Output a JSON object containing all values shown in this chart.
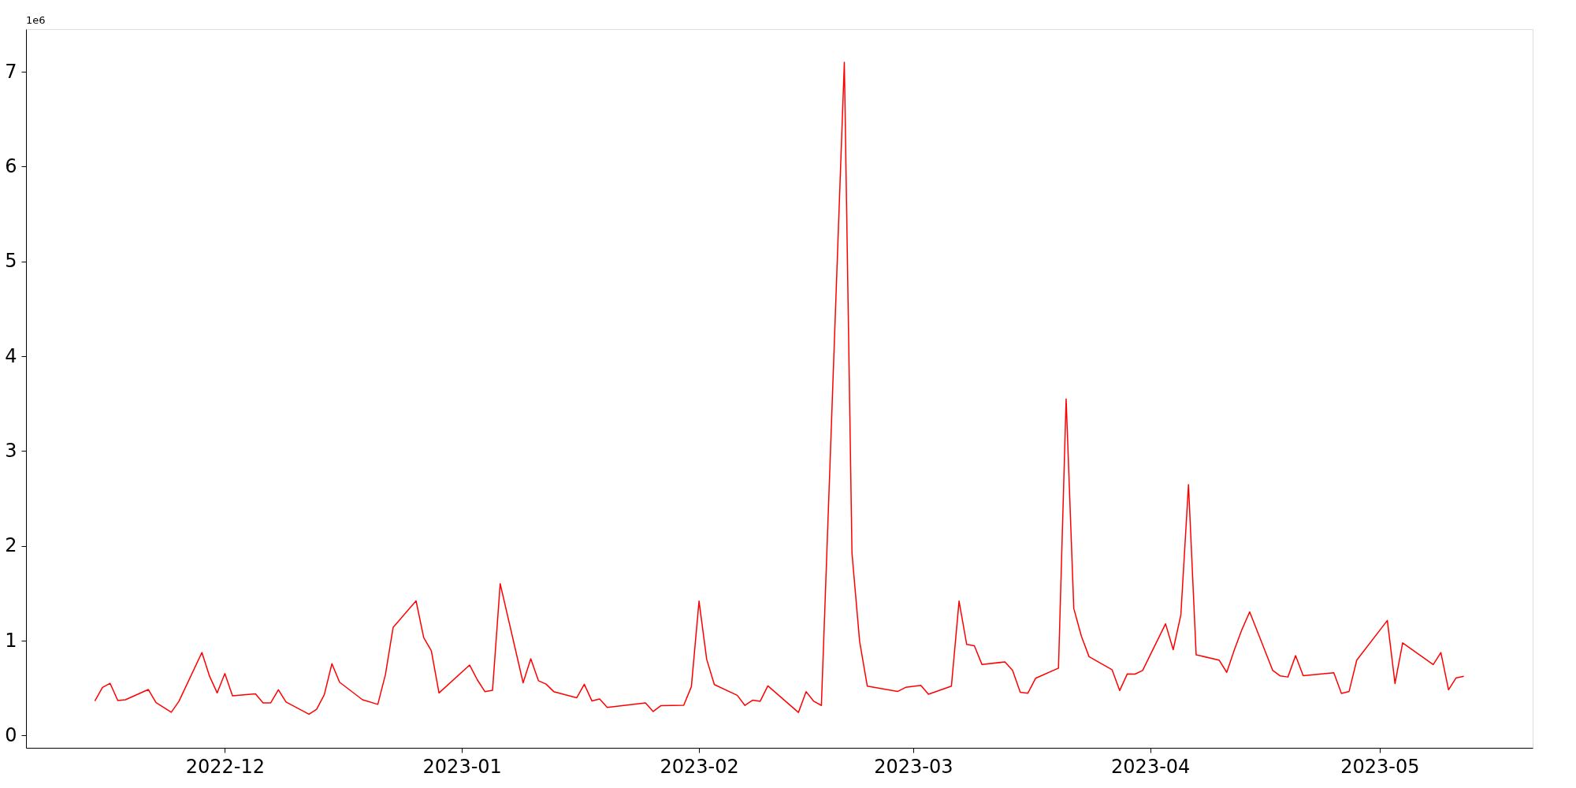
{
  "chart_data": {
    "type": "line",
    "x": [
      "2022-11-14",
      "2022-11-15",
      "2022-11-16",
      "2022-11-17",
      "2022-11-18",
      "2022-11-21",
      "2022-11-22",
      "2022-11-24",
      "2022-11-25",
      "2022-11-28",
      "2022-11-29",
      "2022-11-30",
      "2022-12-01",
      "2022-12-02",
      "2022-12-05",
      "2022-12-06",
      "2022-12-07",
      "2022-12-08",
      "2022-12-09",
      "2022-12-12",
      "2022-12-13",
      "2022-12-14",
      "2022-12-15",
      "2022-12-16",
      "2022-12-19",
      "2022-12-21",
      "2022-12-22",
      "2022-12-23",
      "2022-12-26",
      "2022-12-27",
      "2022-12-28",
      "2022-12-29",
      "2023-01-02",
      "2023-01-03",
      "2023-01-04",
      "2023-01-05",
      "2023-01-06",
      "2023-01-09",
      "2023-01-10",
      "2023-01-11",
      "2023-01-12",
      "2023-01-13",
      "2023-01-16",
      "2023-01-17",
      "2023-01-18",
      "2023-01-19",
      "2023-01-20",
      "2023-01-25",
      "2023-01-26",
      "2023-01-27",
      "2023-01-30",
      "2023-01-31",
      "2023-02-01",
      "2023-02-02",
      "2023-02-03",
      "2023-02-06",
      "2023-02-07",
      "2023-02-08",
      "2023-02-09",
      "2023-02-10",
      "2023-02-14",
      "2023-02-15",
      "2023-02-16",
      "2023-02-17",
      "2023-02-20",
      "2023-02-21",
      "2023-02-22",
      "2023-02-23",
      "2023-02-27",
      "2023-02-28",
      "2023-03-02",
      "2023-03-03",
      "2023-03-06",
      "2023-03-07",
      "2023-03-08",
      "2023-03-09",
      "2023-03-10",
      "2023-03-13",
      "2023-03-14",
      "2023-03-15",
      "2023-03-16",
      "2023-03-17",
      "2023-03-20",
      "2023-03-21",
      "2023-03-22",
      "2023-03-23",
      "2023-03-24",
      "2023-03-27",
      "2023-03-28",
      "2023-03-29",
      "2023-03-30",
      "2023-03-31",
      "2023-04-03",
      "2023-04-04",
      "2023-04-05",
      "2023-04-06",
      "2023-04-07",
      "2023-04-10",
      "2023-04-11",
      "2023-04-12",
      "2023-04-13",
      "2023-04-14",
      "2023-04-17",
      "2023-04-18",
      "2023-04-19",
      "2023-04-20",
      "2023-04-21",
      "2023-04-25",
      "2023-04-26",
      "2023-04-27",
      "2023-04-28",
      "2023-05-02",
      "2023-05-03",
      "2023-05-04",
      "2023-05-08",
      "2023-05-09",
      "2023-05-10",
      "2023-05-11",
      "2023-05-12"
    ],
    "series": [
      {
        "color": "#ff0000",
        "values": [
          0.364,
          0.507,
          0.55,
          0.369,
          0.377,
          0.485,
          0.347,
          0.245,
          0.361,
          0.875,
          0.625,
          0.449,
          0.653,
          0.418,
          0.44,
          0.344,
          0.344,
          0.482,
          0.353,
          0.224,
          0.276,
          0.43,
          0.757,
          0.562,
          0.377,
          0.328,
          0.644,
          1.139,
          1.42,
          1.032,
          0.894,
          0.449,
          0.743,
          0.589,
          0.463,
          0.476,
          1.601,
          0.556,
          0.809,
          0.578,
          0.542,
          0.463,
          0.397,
          0.54,
          0.364,
          0.385,
          0.295,
          0.344,
          0.253,
          0.314,
          0.319,
          0.515,
          1.417,
          0.804,
          0.537,
          0.424,
          0.317,
          0.372,
          0.361,
          0.523,
          0.243,
          0.463,
          0.361,
          0.317,
          7.1,
          1.923,
          0.991,
          0.521,
          0.465,
          0.507,
          0.529,
          0.435,
          0.521,
          1.417,
          0.96,
          0.946,
          0.748,
          0.776,
          0.686,
          0.455,
          0.446,
          0.603,
          0.71,
          3.55,
          1.34,
          1.046,
          0.831,
          0.694,
          0.474,
          0.65,
          0.647,
          0.686,
          1.178,
          0.905,
          1.271,
          2.646,
          0.851,
          0.795,
          0.666,
          0.905,
          1.12,
          1.304,
          0.688,
          0.628,
          0.617,
          0.842,
          0.63,
          0.661,
          0.443,
          0.465,
          0.795,
          1.213,
          0.548,
          0.977,
          0.748,
          0.875,
          0.482,
          0.608,
          0.625
        ]
      }
    ],
    "xlim": [
      "2022-11-05",
      "2023-05-21"
    ],
    "xticks": [
      "2022-12",
      "2023-01",
      "2023-02",
      "2023-03",
      "2023-04",
      "2023-05"
    ],
    "ylim": [
      -0.13,
      7.45
    ],
    "yticks": [
      0,
      1,
      2,
      3,
      4,
      5,
      6,
      7
    ],
    "annotations": [
      "1e6"
    ],
    "grid": false
  }
}
